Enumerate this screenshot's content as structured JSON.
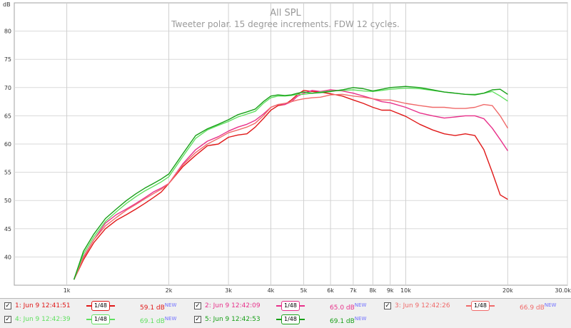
{
  "chart_data": {
    "type": "line",
    "title": "All SPL",
    "subtitle": "Tweeter polar. 15 degree increments. FDW 12 cycles.",
    "ylabel": "dB",
    "xlabel": "",
    "x_scale": "log",
    "xlim": [
      700,
      30000
    ],
    "ylim": [
      35,
      85
    ],
    "grid": true,
    "x_ticks": [
      {
        "value": 1000,
        "label": "1k"
      },
      {
        "value": 2000,
        "label": "2k"
      },
      {
        "value": 3000,
        "label": "3k"
      },
      {
        "value": 4000,
        "label": "4k"
      },
      {
        "value": 5000,
        "label": "5k"
      },
      {
        "value": 6000,
        "label": "6k"
      },
      {
        "value": 7000,
        "label": "7k"
      },
      {
        "value": 8000,
        "label": "8k"
      },
      {
        "value": 9000,
        "label": "9k"
      },
      {
        "value": 10000,
        "label": "10k"
      },
      {
        "value": 20000,
        "label": "20k"
      },
      {
        "value": 30000,
        "label": "30.0k Hz"
      }
    ],
    "y_ticks": [
      {
        "value": 40,
        "label": "40"
      },
      {
        "value": 45,
        "label": "45"
      },
      {
        "value": 50,
        "label": "50"
      },
      {
        "value": 55,
        "label": "55"
      },
      {
        "value": 60,
        "label": "60"
      },
      {
        "value": 65,
        "label": "65"
      },
      {
        "value": 70,
        "label": "70"
      },
      {
        "value": 75,
        "label": "75"
      },
      {
        "value": 80,
        "label": "80"
      }
    ],
    "y_top_label": "dB",
    "series": [
      {
        "name": "1: Jun 9 12:41:51",
        "color": "#e01818",
        "x": [
          1050,
          1120,
          1200,
          1300,
          1400,
          1500,
          1600,
          1700,
          1800,
          1900,
          2000,
          2200,
          2400,
          2600,
          2800,
          3000,
          3200,
          3400,
          3600,
          3800,
          4000,
          4200,
          4400,
          4600,
          4800,
          5000,
          5300,
          5600,
          6000,
          6500,
          7000,
          7500,
          8000,
          8500,
          9000,
          10000,
          11000,
          12000,
          13000,
          14000,
          15000,
          16000,
          17000,
          18000,
          19000,
          20000
        ],
        "y": [
          36,
          39.5,
          42.5,
          45,
          46.5,
          47.5,
          48.5,
          49.5,
          50.5,
          51.5,
          53,
          56,
          58,
          59.7,
          60,
          61.2,
          61.6,
          61.8,
          63,
          64.5,
          66,
          66.8,
          67,
          67.8,
          68.8,
          69.5,
          69.3,
          69.2,
          68.9,
          68.5,
          67.8,
          67.2,
          66.5,
          66,
          66,
          64.9,
          63.5,
          62.5,
          61.8,
          61.5,
          61.8,
          61.5,
          59,
          55,
          51,
          50.2
        ]
      },
      {
        "name": "2: Jun 9 12:42:09",
        "color": "#e8308a",
        "x": [
          1050,
          1120,
          1200,
          1300,
          1400,
          1500,
          1600,
          1700,
          1800,
          1900,
          2000,
          2200,
          2400,
          2600,
          2800,
          3000,
          3200,
          3400,
          3600,
          3800,
          4000,
          4200,
          4400,
          4600,
          4800,
          5000,
          5300,
          5600,
          6000,
          6500,
          7000,
          7500,
          8000,
          8500,
          9000,
          10000,
          11000,
          12000,
          13000,
          14000,
          15000,
          16000,
          17000,
          18000,
          19000,
          20000
        ],
        "y": [
          36,
          40,
          43,
          46,
          47.5,
          48.5,
          49.5,
          50.5,
          51.5,
          52.2,
          53,
          56.5,
          59,
          60.5,
          61.3,
          62.3,
          63,
          63.5,
          64.2,
          65.3,
          66.5,
          67,
          67,
          67.5,
          68.5,
          69,
          69.5,
          69.3,
          69.6,
          69.4,
          69,
          68.5,
          68,
          67.5,
          67.3,
          66.5,
          65.5,
          65,
          64.6,
          64.8,
          65,
          65,
          64.5,
          62.8,
          60.8,
          58.8
        ]
      },
      {
        "name": "3: Jun 9 12:42:26",
        "color": "#f06a6a",
        "x": [
          1050,
          1120,
          1200,
          1300,
          1400,
          1500,
          1600,
          1700,
          1800,
          1900,
          2000,
          2200,
          2400,
          2600,
          2800,
          3000,
          3200,
          3400,
          3600,
          3800,
          4000,
          4200,
          4400,
          4600,
          4800,
          5000,
          5300,
          5600,
          6000,
          6500,
          7000,
          7500,
          8000,
          8500,
          9000,
          10000,
          11000,
          12000,
          13000,
          14000,
          15000,
          16000,
          17000,
          18000,
          19000,
          20000
        ],
        "y": [
          36,
          39.8,
          43,
          45.5,
          47,
          48.3,
          49.3,
          50.3,
          51.2,
          52,
          53,
          56.3,
          58.5,
          60,
          61,
          62,
          62.5,
          63,
          63.7,
          65,
          66.5,
          67,
          67.2,
          67.5,
          67.8,
          68,
          68.2,
          68.3,
          68.7,
          68.8,
          68.5,
          68.3,
          68,
          67.8,
          67.8,
          67.2,
          66.8,
          66.5,
          66.5,
          66.3,
          66.3,
          66.5,
          67,
          66.8,
          65,
          62.8
        ]
      },
      {
        "name": "4: Jun 9 12:42:39",
        "color": "#60e060",
        "x": [
          1050,
          1120,
          1200,
          1300,
          1400,
          1500,
          1600,
          1700,
          1800,
          1900,
          2000,
          2200,
          2400,
          2600,
          2800,
          3000,
          3200,
          3400,
          3600,
          3800,
          4000,
          4200,
          4400,
          4600,
          4800,
          5000,
          5300,
          5600,
          6000,
          6500,
          7000,
          7500,
          8000,
          8500,
          9000,
          10000,
          11000,
          12000,
          13000,
          14000,
          15000,
          16000,
          17000,
          18000,
          19000,
          20000
        ],
        "y": [
          36,
          40.5,
          43.5,
          46.3,
          48,
          49.5,
          50.7,
          51.7,
          52.5,
          53.3,
          54.2,
          57.8,
          61,
          62.5,
          63.3,
          64,
          64.8,
          65.3,
          65.8,
          67.2,
          68.2,
          68.5,
          68.5,
          68.6,
          68.8,
          68.8,
          69,
          69.2,
          69.4,
          69.5,
          69.6,
          69.4,
          69.3,
          69.5,
          69.7,
          69.9,
          69.8,
          69.5,
          69.2,
          69,
          68.8,
          68.8,
          69,
          69.3,
          68.5,
          67.6
        ]
      },
      {
        "name": "5: Jun 9 12:42:53",
        "color": "#18a018",
        "x": [
          1050,
          1120,
          1200,
          1300,
          1400,
          1500,
          1600,
          1700,
          1800,
          1900,
          2000,
          2200,
          2400,
          2600,
          2800,
          3000,
          3200,
          3400,
          3600,
          3800,
          4000,
          4200,
          4400,
          4600,
          4800,
          5000,
          5300,
          5600,
          6000,
          6500,
          7000,
          7500,
          8000,
          8500,
          9000,
          10000,
          11000,
          12000,
          13000,
          14000,
          15000,
          16000,
          17000,
          18000,
          19000,
          20000
        ],
        "y": [
          36,
          41,
          44,
          46.8,
          48.5,
          50,
          51.2,
          52.2,
          53,
          53.8,
          54.7,
          58.3,
          61.5,
          62.7,
          63.5,
          64.3,
          65.2,
          65.7,
          66.2,
          67.5,
          68.5,
          68.7,
          68.6,
          68.7,
          69,
          69.2,
          69,
          69.1,
          69.3,
          69.6,
          70,
          69.8,
          69.4,
          69.7,
          70,
          70.2,
          70,
          69.6,
          69.2,
          69,
          68.8,
          68.7,
          69,
          69.6,
          69.7,
          68.8
        ]
      }
    ]
  },
  "legend": {
    "items": [
      {
        "check": "✓",
        "label": "1: Jun 9 12:41:51",
        "smoothing": "1/48",
        "value": "59.1 dB",
        "badge": "NEW",
        "color": "#e01818"
      },
      {
        "check": "✓",
        "label": "2: Jun 9 12:42:09",
        "smoothing": "1/48",
        "value": "65.0 dB",
        "badge": "NEW",
        "color": "#e8308a"
      },
      {
        "check": "✓",
        "label": "3: Jun 9 12:42:26",
        "smoothing": "1/48",
        "value": "66.9 dB",
        "badge": "NEW",
        "color": "#f06a6a"
      },
      {
        "check": "✓",
        "label": "4: Jun 9 12:42:39",
        "smoothing": "1/48",
        "value": "69.1 dB",
        "badge": "NEW",
        "color": "#60e060"
      },
      {
        "check": "✓",
        "label": "5: Jun 9 12:42:53",
        "smoothing": "1/48",
        "value": "69.1 dB",
        "badge": "NEW",
        "color": "#18a018"
      }
    ]
  }
}
